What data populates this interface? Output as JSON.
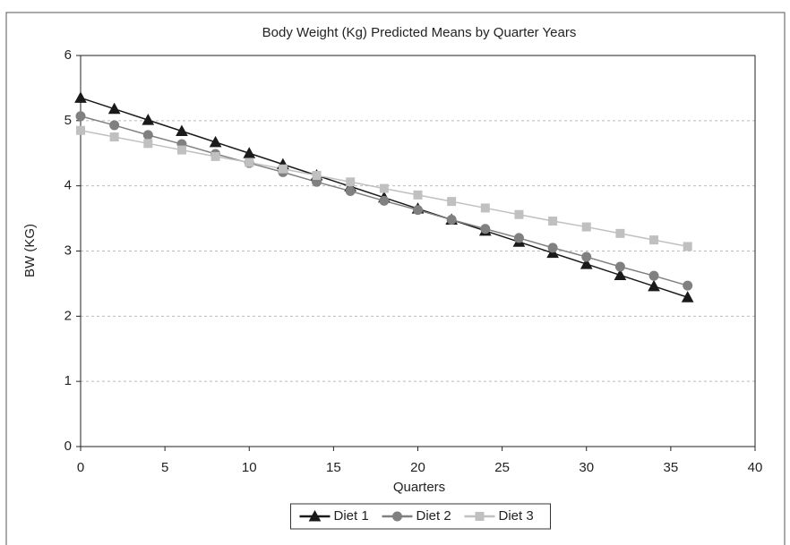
{
  "chart_data": {
    "type": "line",
    "title": "Body Weight (Kg) Predicted Means by Quarter Years",
    "xlabel": "Quarters",
    "ylabel": "BW (KG)",
    "x": [
      0,
      2,
      4,
      6,
      8,
      10,
      12,
      14,
      16,
      18,
      20,
      22,
      24,
      26,
      28,
      30,
      32,
      34,
      36
    ],
    "series": [
      {
        "name": "Diet 1",
        "color": "#1a1a1a",
        "marker": "triangle",
        "values": [
          5.35,
          5.18,
          5.01,
          4.84,
          4.67,
          4.5,
          4.33,
          4.16,
          3.99,
          3.82,
          3.65,
          3.48,
          3.31,
          3.14,
          2.97,
          2.8,
          2.63,
          2.46,
          2.29
        ]
      },
      {
        "name": "Diet 2",
        "color": "#808080",
        "marker": "circle",
        "values": [
          5.07,
          4.93,
          4.78,
          4.64,
          4.49,
          4.35,
          4.21,
          4.06,
          3.92,
          3.77,
          3.63,
          3.48,
          3.34,
          3.2,
          3.05,
          2.91,
          2.76,
          2.62,
          2.47
        ]
      },
      {
        "name": "Diet 3",
        "color": "#c0c0c0",
        "marker": "square",
        "values": [
          4.85,
          4.75,
          4.65,
          4.55,
          4.45,
          4.36,
          4.26,
          4.16,
          4.06,
          3.96,
          3.86,
          3.76,
          3.66,
          3.56,
          3.46,
          3.37,
          3.27,
          3.17,
          3.07
        ]
      }
    ],
    "xlim": [
      0,
      40
    ],
    "xticks": [
      0,
      5,
      10,
      15,
      20,
      25,
      30,
      35,
      40
    ],
    "ylim": [
      0,
      6
    ],
    "yticks": [
      0,
      1,
      2,
      3,
      4,
      5,
      6
    ],
    "grid": true,
    "legend": "bottom"
  }
}
